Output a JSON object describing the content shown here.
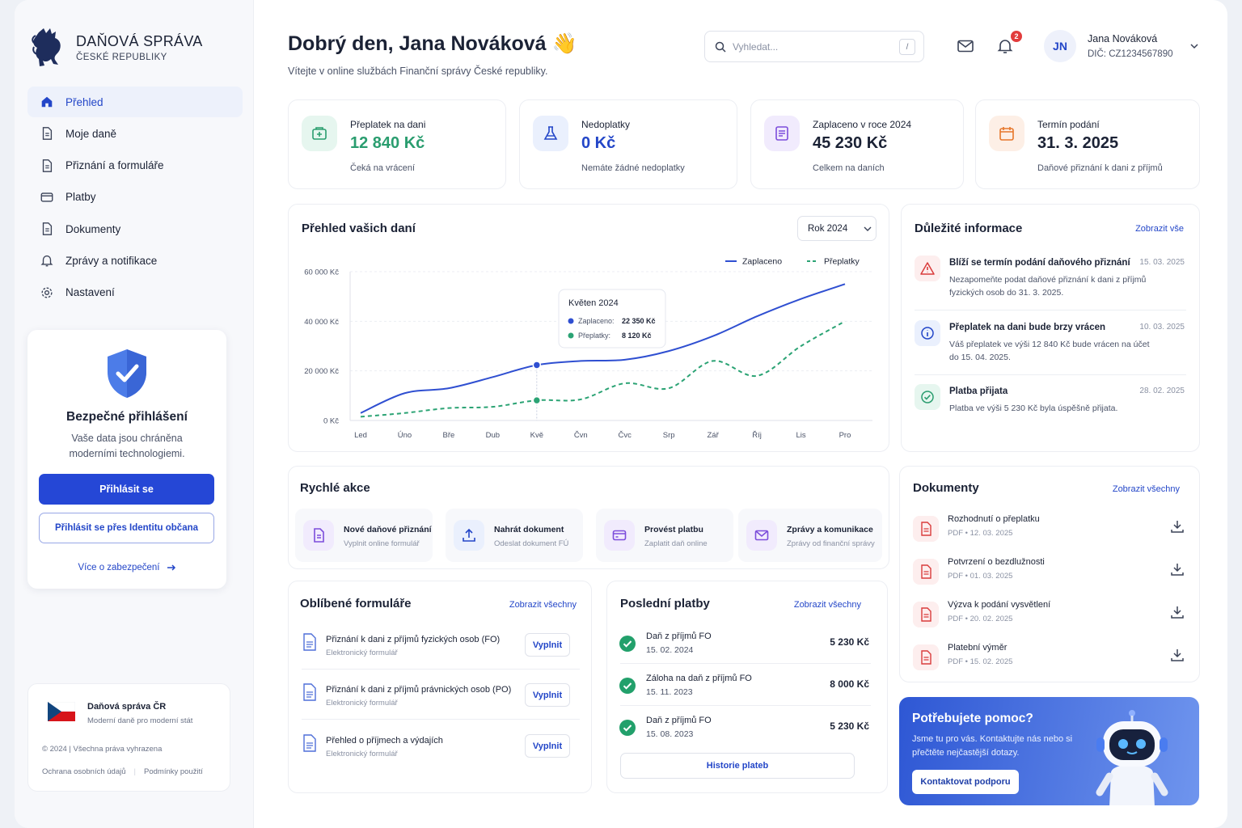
{
  "brand": {
    "title": "DAŇOVÁ SPRÁVA",
    "subtitle": "ČESKÉ REPUBLIKY"
  },
  "nav": [
    {
      "label": "Přehled",
      "icon": "home-icon",
      "active": true
    },
    {
      "label": "Moje daně",
      "icon": "document-icon"
    },
    {
      "label": "Přiznání a formuláře",
      "icon": "document-icon"
    },
    {
      "label": "Platby",
      "icon": "card-icon"
    },
    {
      "label": "Dokumenty",
      "icon": "document-icon"
    },
    {
      "label": "Zprávy a notifikace",
      "icon": "bell-icon"
    },
    {
      "label": "Nastavení",
      "icon": "gear-icon"
    }
  ],
  "secure": {
    "title": "Bezpečné přihlášení",
    "text": "Vaše data jsou chráněna moderními technologiemi.",
    "login": "Přihlásit se",
    "identity": "Přihlásit se přes Identitu občana",
    "more": "Více o zabezpečení"
  },
  "footer": {
    "name": "Daňová správa ČR",
    "desc": "Moderní daně pro moderní stát",
    "copy": "© 2024 | Všechna práva vyhrazena",
    "privacy": "Ochrana osobních údajů",
    "terms": "Podmínky použití"
  },
  "header": {
    "greeting": "Dobrý den, Jana Nováková 👋",
    "subtitle": "Vítejte v online službách Finanční správy České republiky.",
    "search_placeholder": "Vyhledat...",
    "search_key": "/",
    "notifications": "2",
    "user_initials": "JN",
    "user_name": "Jana Nováková",
    "user_dic": "DIČ: CZ1234567890"
  },
  "stats": [
    {
      "label": "Přeplatek na dani",
      "value": "12 840 Kč",
      "note": "Čeká na vrácení",
      "icon": "wallet-icon",
      "color": "#2a9d6f"
    },
    {
      "label": "Nedoplatky",
      "value": "0 Kč",
      "note": "Nemáte žádné nedoplatky",
      "icon": "flask-icon",
      "color": "#2346c8"
    },
    {
      "label": "Zaplaceno v roce 2024",
      "value": "45 230 Kč",
      "note": "Celkem na daních",
      "icon": "receipt-icon",
      "color": "#1b2235"
    },
    {
      "label": "Termín podání",
      "value": "31. 3. 2025",
      "note": "Daňové přiznání k dani z příjmů",
      "icon": "calendar-icon",
      "color": "#1b2235"
    }
  ],
  "chart_card": {
    "title": "Přehled vašich daní",
    "year": "Rok 2024"
  },
  "chart_data": {
    "type": "line",
    "categories": [
      "Led",
      "Úno",
      "Bře",
      "Dub",
      "Kvě",
      "Čvn",
      "Čvc",
      "Srp",
      "Zář",
      "Říj",
      "Lis",
      "Pro"
    ],
    "series": [
      {
        "name": "Zaplaceno",
        "color": "#2f4fd1",
        "values": [
          3000,
          11000,
          13000,
          17500,
          22350,
          24000,
          24500,
          28000,
          34000,
          42000,
          49000,
          55000
        ]
      },
      {
        "name": "Přeplatky",
        "color": "#2ba374",
        "values": [
          1500,
          3000,
          5000,
          5500,
          8120,
          8500,
          15000,
          13000,
          24000,
          18000,
          30000,
          40000
        ]
      }
    ],
    "ylim": [
      0,
      60000
    ],
    "yticks": [
      "0 Kč",
      "20 000 Kč",
      "40 000 Kč",
      "60 000 Kč"
    ],
    "legend_position": "top-right",
    "tooltip": {
      "title": "Květen 2024",
      "rows": [
        {
          "label": "Zaplaceno:",
          "value": "22 350 Kč"
        },
        {
          "label": "Přeplatky:",
          "value": "8 120 Kč"
        }
      ]
    }
  },
  "info": {
    "title": "Důležité informace",
    "link": "Zobrazit vše",
    "items": [
      {
        "title": "Blíží se termín podání daňového přiznání",
        "desc": "Nezapomeňte podat daňové přiznání k dani z příjmů fyzických osob do 31. 3. 2025.",
        "date": "15. 03. 2025",
        "icon": "warning-icon"
      },
      {
        "title": "Přeplatek na dani bude brzy vrácen",
        "desc": "Váš přeplatek ve výši 12 840 Kč bude vrácen na účet do 15. 04. 2025.",
        "date": "10. 03. 2025",
        "icon": "info-icon"
      },
      {
        "title": "Platba přijata",
        "desc": "Platba ve výši 5 230 Kč byla úspěšně přijata.",
        "date": "28. 02. 2025",
        "icon": "check-circle-icon"
      }
    ]
  },
  "quick": {
    "title": "Rychlé akce",
    "items": [
      {
        "title": "Nové daňové přiznání",
        "desc": "Vyplnit online formulář",
        "icon": "document-icon"
      },
      {
        "title": "Nahrát dokument",
        "desc": "Odeslat dokument FÚ",
        "icon": "upload-icon"
      },
      {
        "title": "Provést platbu",
        "desc": "Zaplatit daň online",
        "icon": "card-icon"
      },
      {
        "title": "Zprávy a komunikace",
        "desc": "Zprávy od finanční správy",
        "icon": "mail-icon"
      }
    ]
  },
  "forms": {
    "title": "Oblíbené formuláře",
    "link": "Zobrazit všechny",
    "button": "Vyplnit",
    "items": [
      {
        "title": "Přiznání k dani z příjmů fyzických osob (FO)",
        "desc": "Elektronický formulář"
      },
      {
        "title": "Přiznání k dani z příjmů právnických osob (PO)",
        "desc": "Elektronický formulář"
      },
      {
        "title": "Přehled o příjmech a výdajích",
        "desc": "Elektronický formulář"
      }
    ]
  },
  "payments": {
    "title": "Poslední platby",
    "link": "Zobrazit všechny",
    "history": "Historie plateb",
    "items": [
      {
        "title": "Daň z příjmů FO",
        "date": "15. 02. 2024",
        "amount": "5 230 Kč"
      },
      {
        "title": "Záloha na daň z příjmů FO",
        "date": "15. 11. 2023",
        "amount": "8 000 Kč"
      },
      {
        "title": "Daň z příjmů FO",
        "date": "15. 08. 2023",
        "amount": "5 230 Kč"
      }
    ]
  },
  "docs": {
    "title": "Dokumenty",
    "link": "Zobrazit všechny",
    "items": [
      {
        "title": "Rozhodnutí o přeplatku",
        "meta": "PDF  •  12. 03. 2025"
      },
      {
        "title": "Potvrzení o bezdlužnosti",
        "meta": "PDF  •  01. 03. 2025"
      },
      {
        "title": "Výzva k podání vysvětlení",
        "meta": "PDF  •  20. 02. 2025"
      },
      {
        "title": "Platební výměr",
        "meta": "PDF  •  15. 02. 2025"
      }
    ]
  },
  "help": {
    "title": "Potřebujete pomoc?",
    "text": "Jsme tu pro vás. Kontaktujte nás nebo si přečtěte nejčastější dotazy.",
    "button": "Kontaktovat podporu"
  }
}
